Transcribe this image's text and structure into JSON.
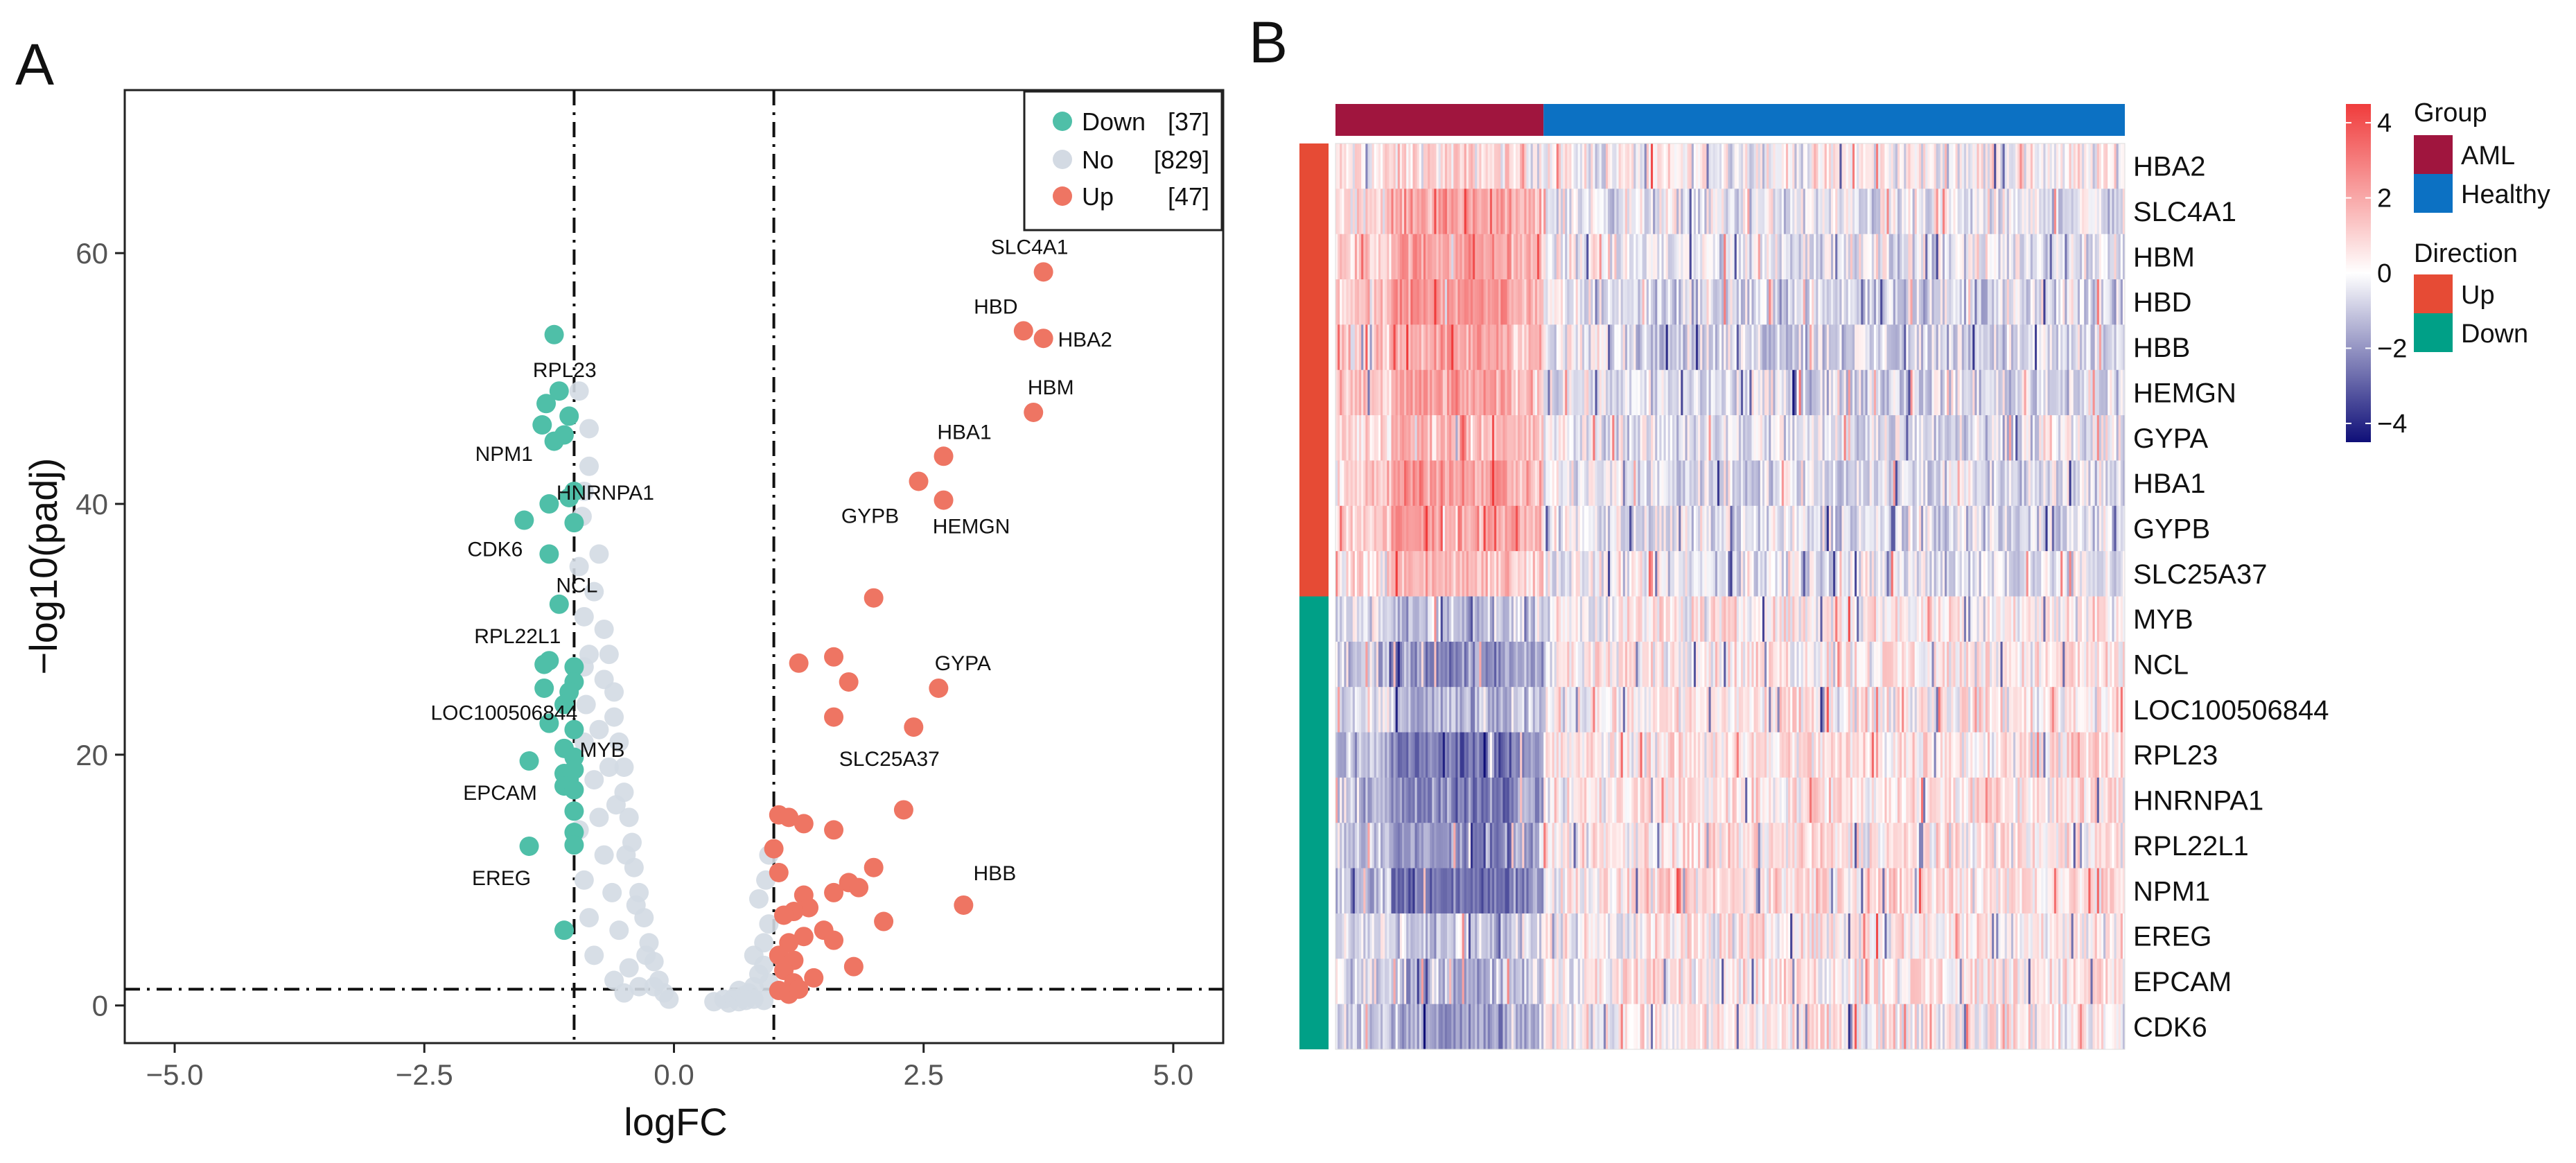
{
  "panels": {
    "a": {
      "letter": "A"
    },
    "b": {
      "letter": "B"
    }
  },
  "colors": {
    "down": "#4fbfa8",
    "no": "#d3dae3",
    "up": "#ee7563",
    "aml": "#a0153e",
    "healthy": "#0c71c3",
    "dir_up": "#e64b35",
    "dir_down": "#00a087",
    "heat_high": "#f03c3c",
    "heat_mid": "#ffffff",
    "heat_low": "#0f0f78"
  },
  "chart_data": [
    {
      "type": "scatter",
      "name": "volcano",
      "title": "",
      "xlabel": "logFC",
      "ylabel": "−log10(padj)",
      "xlim": [
        -5.5,
        5.5
      ],
      "ylim": [
        -3,
        73
      ],
      "x_ticks": [
        -5.0,
        -2.5,
        0.0,
        2.5,
        5.0
      ],
      "x_tick_labels": [
        "−5.0",
        "−2.5",
        "0.0",
        "2.5",
        "5.0"
      ],
      "y_ticks": [
        0,
        20,
        40,
        60
      ],
      "y_tick_labels": [
        "0",
        "20",
        "40",
        "60"
      ],
      "grid": false,
      "thresholds": {
        "logfc": [
          -1,
          1
        ],
        "padj_log": 1.3
      },
      "legend": {
        "position": "top-right",
        "entries": [
          {
            "key": "down",
            "label": "Down",
            "count": "[37]"
          },
          {
            "key": "no",
            "label": "No",
            "count": "[829]"
          },
          {
            "key": "up",
            "label": "Up",
            "count": "[47]"
          }
        ]
      },
      "series": [
        {
          "name": "Down",
          "points": [
            [
              -1.2,
              53.5
            ],
            [
              -1.15,
              49
            ],
            [
              -1.28,
              48
            ],
            [
              -1.05,
              47
            ],
            [
              -1.32,
              46.3
            ],
            [
              -1.1,
              45.5
            ],
            [
              -1.2,
              45
            ],
            [
              -1.0,
              41
            ],
            [
              -1.05,
              40.5
            ],
            [
              -1.25,
              40
            ],
            [
              -1.5,
              38.7
            ],
            [
              -1.0,
              38.5
            ],
            [
              -1.25,
              36
            ],
            [
              -1.15,
              32
            ],
            [
              -1.25,
              27.5
            ],
            [
              -1.3,
              27.2
            ],
            [
              -1.0,
              27
            ],
            [
              -1.0,
              25.8
            ],
            [
              -1.3,
              25.3
            ],
            [
              -1.05,
              25
            ],
            [
              -1.1,
              24
            ],
            [
              -1.25,
              22.5
            ],
            [
              -1.0,
              22
            ],
            [
              -1.1,
              20.5
            ],
            [
              -1.0,
              19.8
            ],
            [
              -1.45,
              19.5
            ],
            [
              -1.0,
              18.8
            ],
            [
              -1.1,
              18.5
            ],
            [
              -1.05,
              18
            ],
            [
              -1.1,
              17.5
            ],
            [
              -1.0,
              17.2
            ],
            [
              -1.0,
              15.5
            ],
            [
              -1.0,
              13.8
            ],
            [
              -1.0,
              12.8
            ],
            [
              -1.45,
              12.7
            ],
            [
              -1.1,
              6
            ]
          ]
        },
        {
          "name": "No",
          "points": [
            [
              -0.95,
              49
            ],
            [
              -0.85,
              46
            ],
            [
              -0.85,
              43
            ],
            [
              -0.9,
              41
            ],
            [
              -0.92,
              39
            ],
            [
              -0.75,
              36
            ],
            [
              -0.8,
              33
            ],
            [
              -0.7,
              30
            ],
            [
              -0.65,
              28
            ],
            [
              -0.7,
              26
            ],
            [
              -0.6,
              25
            ],
            [
              -0.6,
              23
            ],
            [
              -0.55,
              21
            ],
            [
              -0.5,
              19
            ],
            [
              -0.5,
              17
            ],
            [
              -0.45,
              15
            ],
            [
              -0.42,
              13
            ],
            [
              -0.4,
              11
            ],
            [
              -0.35,
              9
            ],
            [
              -0.3,
              7
            ],
            [
              -0.25,
              5
            ],
            [
              -0.2,
              3.5
            ],
            [
              -0.15,
              2
            ],
            [
              -0.1,
              1
            ],
            [
              -0.05,
              0.5
            ],
            [
              -0.9,
              31
            ],
            [
              -0.85,
              28
            ],
            [
              -0.88,
              24
            ],
            [
              -0.9,
              21
            ],
            [
              -0.8,
              18
            ],
            [
              -0.75,
              15
            ],
            [
              -0.7,
              12
            ],
            [
              -0.62,
              9
            ],
            [
              -0.55,
              6
            ],
            [
              -0.45,
              3
            ],
            [
              -0.35,
              1.5
            ],
            [
              -0.95,
              14
            ],
            [
              -0.9,
              10
            ],
            [
              -0.85,
              7
            ],
            [
              -0.8,
              4
            ],
            [
              -0.6,
              2
            ],
            [
              -0.5,
              1
            ],
            [
              -0.75,
              22
            ],
            [
              -0.65,
              19
            ],
            [
              -0.58,
              16
            ],
            [
              -0.48,
              12
            ],
            [
              -0.38,
              8
            ],
            [
              -0.28,
              4
            ],
            [
              -0.2,
              1.5
            ],
            [
              -0.95,
              35
            ],
            [
              -0.9,
              27
            ],
            [
              0.4,
              0.3
            ],
            [
              0.5,
              0.5
            ],
            [
              0.55,
              0.2
            ],
            [
              0.6,
              0.6
            ],
            [
              0.65,
              0.3
            ],
            [
              0.7,
              0.8
            ],
            [
              0.75,
              1
            ],
            [
              0.8,
              1.5
            ],
            [
              0.85,
              2.5
            ],
            [
              0.9,
              3.2
            ],
            [
              0.8,
              4
            ],
            [
              0.9,
              5
            ],
            [
              0.95,
              6.5
            ],
            [
              0.85,
              8.5
            ],
            [
              0.92,
              10
            ],
            [
              0.95,
              12
            ],
            [
              0.8,
              0.5
            ],
            [
              0.9,
              0.4
            ],
            [
              0.95,
              1.8
            ],
            [
              0.65,
              1.2
            ],
            [
              0.72,
              0.4
            ]
          ]
        },
        {
          "name": "Up",
          "points": [
            [
              3.7,
              58.5
            ],
            [
              3.5,
              53.8
            ],
            [
              3.7,
              53.2
            ],
            [
              3.6,
              47.3
            ],
            [
              2.7,
              43.8
            ],
            [
              2.45,
              41.8
            ],
            [
              2.7,
              40.3
            ],
            [
              2.0,
              32.5
            ],
            [
              1.25,
              27.3
            ],
            [
              1.6,
              27.8
            ],
            [
              1.75,
              25.8
            ],
            [
              2.65,
              25.3
            ],
            [
              1.6,
              23
            ],
            [
              2.4,
              22.2
            ],
            [
              2.3,
              15.6
            ],
            [
              1.05,
              15.2
            ],
            [
              1.15,
              15
            ],
            [
              1.3,
              14.5
            ],
            [
              1.6,
              14
            ],
            [
              1.0,
              12.5
            ],
            [
              2.0,
              11
            ],
            [
              1.05,
              10.6
            ],
            [
              1.75,
              9.8
            ],
            [
              1.85,
              9.4
            ],
            [
              1.6,
              9
            ],
            [
              1.3,
              8.8
            ],
            [
              2.9,
              8
            ],
            [
              1.35,
              7.8
            ],
            [
              1.2,
              7.5
            ],
            [
              1.1,
              7.2
            ],
            [
              2.1,
              6.7
            ],
            [
              1.5,
              6
            ],
            [
              1.3,
              5.5
            ],
            [
              1.6,
              5.2
            ],
            [
              1.15,
              5
            ],
            [
              1.05,
              4
            ],
            [
              1.2,
              3.6
            ],
            [
              1.8,
              3.1
            ],
            [
              1.1,
              2.8
            ],
            [
              1.2,
              1.8
            ],
            [
              1.4,
              2.2
            ],
            [
              1.05,
              1.2
            ],
            [
              1.15,
              0.9
            ],
            [
              1.25,
              1.3
            ]
          ]
        }
      ],
      "annotations": [
        {
          "text": "SLC4A1",
          "x": 3.7,
          "y": 58.5
        },
        {
          "text": "HBD",
          "x": 3.5,
          "y": 53.8
        },
        {
          "text": "HBA2",
          "x": 3.7,
          "y": 53.2
        },
        {
          "text": "HBM",
          "x": 3.6,
          "y": 47.3
        },
        {
          "text": "HBA1",
          "x": 2.7,
          "y": 43.8
        },
        {
          "text": "GYPB",
          "x": 2.45,
          "y": 41.8
        },
        {
          "text": "HEMGN",
          "x": 2.7,
          "y": 40.3
        },
        {
          "text": "GYPA",
          "x": 2.65,
          "y": 25.3
        },
        {
          "text": "SLC25A37",
          "x": 2.4,
          "y": 22.2
        },
        {
          "text": "HBB",
          "x": 2.9,
          "y": 8
        },
        {
          "text": "RPL23",
          "x": -1.15,
          "y": 49
        },
        {
          "text": "NPM1",
          "x": -1.32,
          "y": 46.3
        },
        {
          "text": "HNRNPA1",
          "x": -1.0,
          "y": 41
        },
        {
          "text": "CDK6",
          "x": -1.5,
          "y": 38.7
        },
        {
          "text": "NCL",
          "x": -1.25,
          "y": 36
        },
        {
          "text": "RPL22L1",
          "x": -1.15,
          "y": 32
        },
        {
          "text": "LOC100506844",
          "x": -1.25,
          "y": 22.5
        },
        {
          "text": "MYB",
          "x": -1.1,
          "y": 20.5
        },
        {
          "text": "EPCAM",
          "x": -1.45,
          "y": 19.5
        },
        {
          "text": "EREG",
          "x": -1.45,
          "y": 12.7
        }
      ]
    },
    {
      "type": "heatmap",
      "name": "heatmap",
      "title": "",
      "rows": [
        "HBA2",
        "SLC4A1",
        "HBM",
        "HBD",
        "HBB",
        "HEMGN",
        "GYPA",
        "HBA1",
        "GYPB",
        "SLC25A37",
        "MYB",
        "NCL",
        "LOC100506844",
        "RPL23",
        "HNRNPA1",
        "RPL22L1",
        "NPM1",
        "EREG",
        "EPCAM",
        "CDK6"
      ],
      "row_direction": [
        "Up",
        "Up",
        "Up",
        "Up",
        "Up",
        "Up",
        "Up",
        "Up",
        "Up",
        "Up",
        "Down",
        "Down",
        "Down",
        "Down",
        "Down",
        "Down",
        "Down",
        "Down",
        "Down",
        "Down"
      ],
      "columns": {
        "AML": 97,
        "Healthy": 271
      },
      "row_profiles": [
        {
          "aml": 0.4,
          "healthy": 0.1
        },
        {
          "aml": 1.2,
          "healthy": -0.3
        },
        {
          "aml": 1.3,
          "healthy": -0.2
        },
        {
          "aml": 1.5,
          "healthy": -0.5
        },
        {
          "aml": 1.2,
          "healthy": -0.5
        },
        {
          "aml": 1.2,
          "healthy": -0.4
        },
        {
          "aml": 1.0,
          "healthy": -0.3
        },
        {
          "aml": 1.4,
          "healthy": -0.4
        },
        {
          "aml": 1.3,
          "healthy": -0.4
        },
        {
          "aml": 0.9,
          "healthy": -0.3
        },
        {
          "aml": -0.6,
          "healthy": 0.3
        },
        {
          "aml": -1.2,
          "healthy": 0.35
        },
        {
          "aml": -0.8,
          "healthy": 0.35
        },
        {
          "aml": -1.5,
          "healthy": 0.45
        },
        {
          "aml": -1.4,
          "healthy": 0.45
        },
        {
          "aml": -1.2,
          "healthy": 0.4
        },
        {
          "aml": -1.6,
          "healthy": 0.5
        },
        {
          "aml": -0.5,
          "healthy": 0.3
        },
        {
          "aml": -0.7,
          "healthy": 0.4
        },
        {
          "aml": -1.1,
          "healthy": 0.3
        }
      ],
      "color_scale": {
        "min": -4.5,
        "max": 4.5,
        "ticks": [
          4,
          2,
          0,
          -2,
          -4
        ],
        "tick_labels": [
          "4",
          "2",
          "0",
          "−2",
          "−4"
        ]
      },
      "legend": {
        "group_title": "Group",
        "group_entries": [
          {
            "key": "aml",
            "label": "AML"
          },
          {
            "key": "healthy",
            "label": "Healthy"
          }
        ],
        "direction_title": "Direction",
        "direction_entries": [
          {
            "key": "dir_up",
            "label": "Up"
          },
          {
            "key": "dir_down",
            "label": "Down"
          }
        ]
      }
    }
  ]
}
